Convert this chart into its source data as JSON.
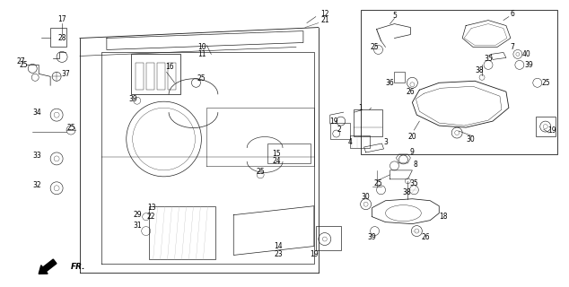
{
  "bg_color": "#ffffff",
  "line_color": "#1a1a1a",
  "fig_width": 6.34,
  "fig_height": 3.2,
  "dpi": 100,
  "gray": "#888888",
  "darkgray": "#555555"
}
